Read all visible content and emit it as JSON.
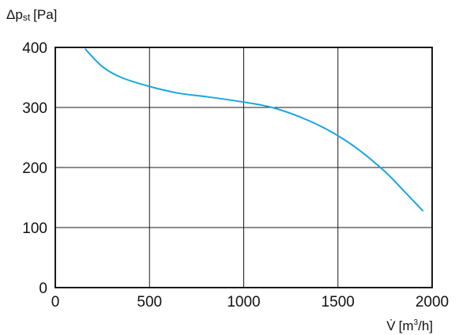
{
  "chart_data": {
    "type": "line",
    "title": "",
    "ylabel": {
      "symbol": "Δp",
      "subscript": "st",
      "unit": "[Pa]"
    },
    "xlabel": {
      "symbol": "V̇",
      "unit_open": "[m",
      "unit_sup": "3",
      "unit_close": "/h]"
    },
    "xlim": [
      0,
      2000
    ],
    "ylim": [
      0,
      400
    ],
    "xticks": [
      0,
      500,
      1000,
      1500,
      2000
    ],
    "yticks": [
      0,
      100,
      200,
      300,
      400
    ],
    "xtick_labels": [
      "0",
      "500",
      "1000",
      "1500",
      "2000"
    ],
    "ytick_labels": [
      "0",
      "100",
      "200",
      "300",
      "400"
    ],
    "grid": true,
    "colors": {
      "curve": "#1aa6df",
      "grid": "#1a1a1a"
    },
    "series": [
      {
        "x": [
          160,
          250,
          350,
          500,
          650,
          800,
          1000,
          1150,
          1300,
          1450,
          1600,
          1750,
          1850,
          1950
        ],
        "y": [
          397,
          368,
          350,
          335,
          324,
          318,
          309,
          300,
          284,
          262,
          232,
          193,
          161,
          128
        ]
      }
    ]
  }
}
